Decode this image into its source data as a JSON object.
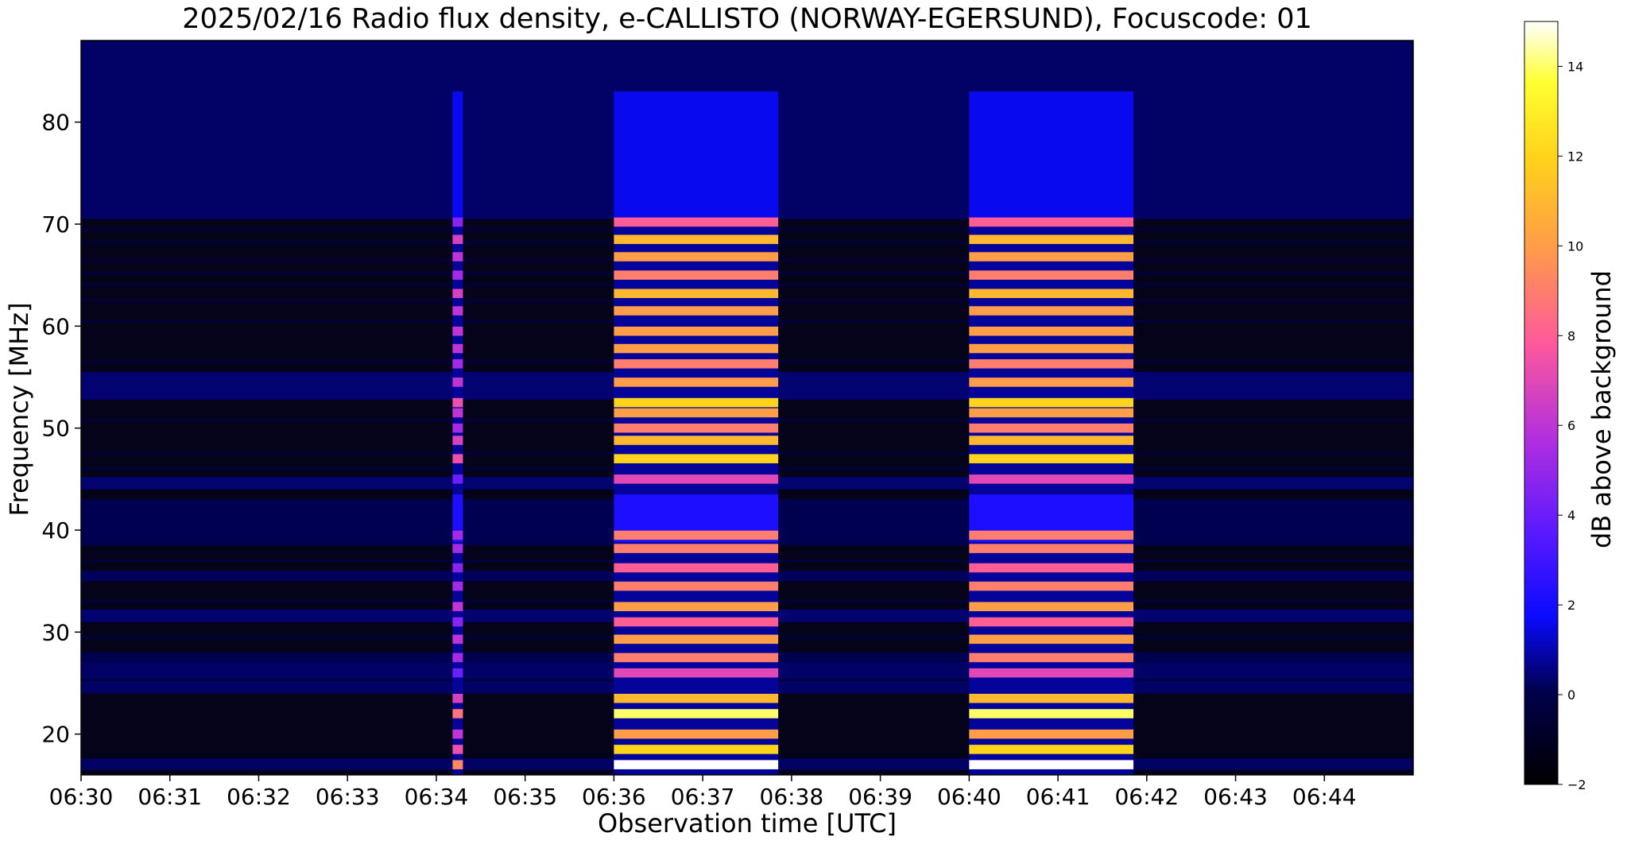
{
  "chart_data": {
    "type": "heatmap",
    "title": "2025/02/16  Radio flux density, e-CALLISTO (NORWAY-EGERSUND), Focuscode: 01",
    "xlabel": "Observation time [UTC]",
    "ylabel": "Frequency [MHz]",
    "colorbar_label": "dB above background",
    "colormap": "gnuplot2",
    "x_range": [
      "06:30",
      "06:45"
    ],
    "x_ticks": [
      "06:30",
      "06:31",
      "06:32",
      "06:33",
      "06:34",
      "06:35",
      "06:36",
      "06:37",
      "06:38",
      "06:39",
      "06:40",
      "06:41",
      "06:42",
      "06:43",
      "06:44"
    ],
    "y_range": [
      16,
      88
    ],
    "y_ticks": [
      20,
      30,
      40,
      50,
      60,
      70,
      80
    ],
    "colorbar_range": [
      -2,
      15
    ],
    "colorbar_ticks": [
      -2,
      0,
      2,
      4,
      6,
      8,
      10,
      12,
      14
    ],
    "bright_bands_mhz": [
      {
        "f": 17.0,
        "i": 15
      },
      {
        "f": 18.5,
        "i": 12
      },
      {
        "f": 20.0,
        "i": 10
      },
      {
        "f": 22.0,
        "i": 14
      },
      {
        "f": 23.5,
        "i": 11
      },
      {
        "f": 26.0,
        "i": 7
      },
      {
        "f": 27.5,
        "i": 9
      },
      {
        "f": 29.3,
        "i": 10
      },
      {
        "f": 31.0,
        "i": 8
      },
      {
        "f": 32.5,
        "i": 10
      },
      {
        "f": 34.5,
        "i": 9
      },
      {
        "f": 36.3,
        "i": 8
      },
      {
        "f": 38.2,
        "i": 9
      },
      {
        "f": 39.5,
        "i": 9
      },
      {
        "f": 45.0,
        "i": 7
      },
      {
        "f": 47.0,
        "i": 12
      },
      {
        "f": 48.8,
        "i": 11
      },
      {
        "f": 50.0,
        "i": 9
      },
      {
        "f": 51.5,
        "i": 10
      },
      {
        "f": 52.5,
        "i": 12
      },
      {
        "f": 54.5,
        "i": 10
      },
      {
        "f": 56.3,
        "i": 9
      },
      {
        "f": 57.8,
        "i": 10
      },
      {
        "f": 59.5,
        "i": 10
      },
      {
        "f": 61.5,
        "i": 10
      },
      {
        "f": 63.2,
        "i": 11
      },
      {
        "f": 65.0,
        "i": 9
      },
      {
        "f": 66.8,
        "i": 10
      },
      {
        "f": 68.5,
        "i": 11
      },
      {
        "f": 70.2,
        "i": 8
      }
    ],
    "bursts": [
      {
        "start": "06:34:11",
        "end": "06:34:18",
        "f_min": 16,
        "f_max": 83,
        "peak_db": 10
      },
      {
        "start": "06:36:00",
        "end": "06:37:51",
        "f_min": 16,
        "f_max": 83,
        "peak_db": 15
      },
      {
        "start": "06:40:00",
        "end": "06:41:51",
        "f_min": 16,
        "f_max": 83,
        "peak_db": 15
      }
    ]
  }
}
